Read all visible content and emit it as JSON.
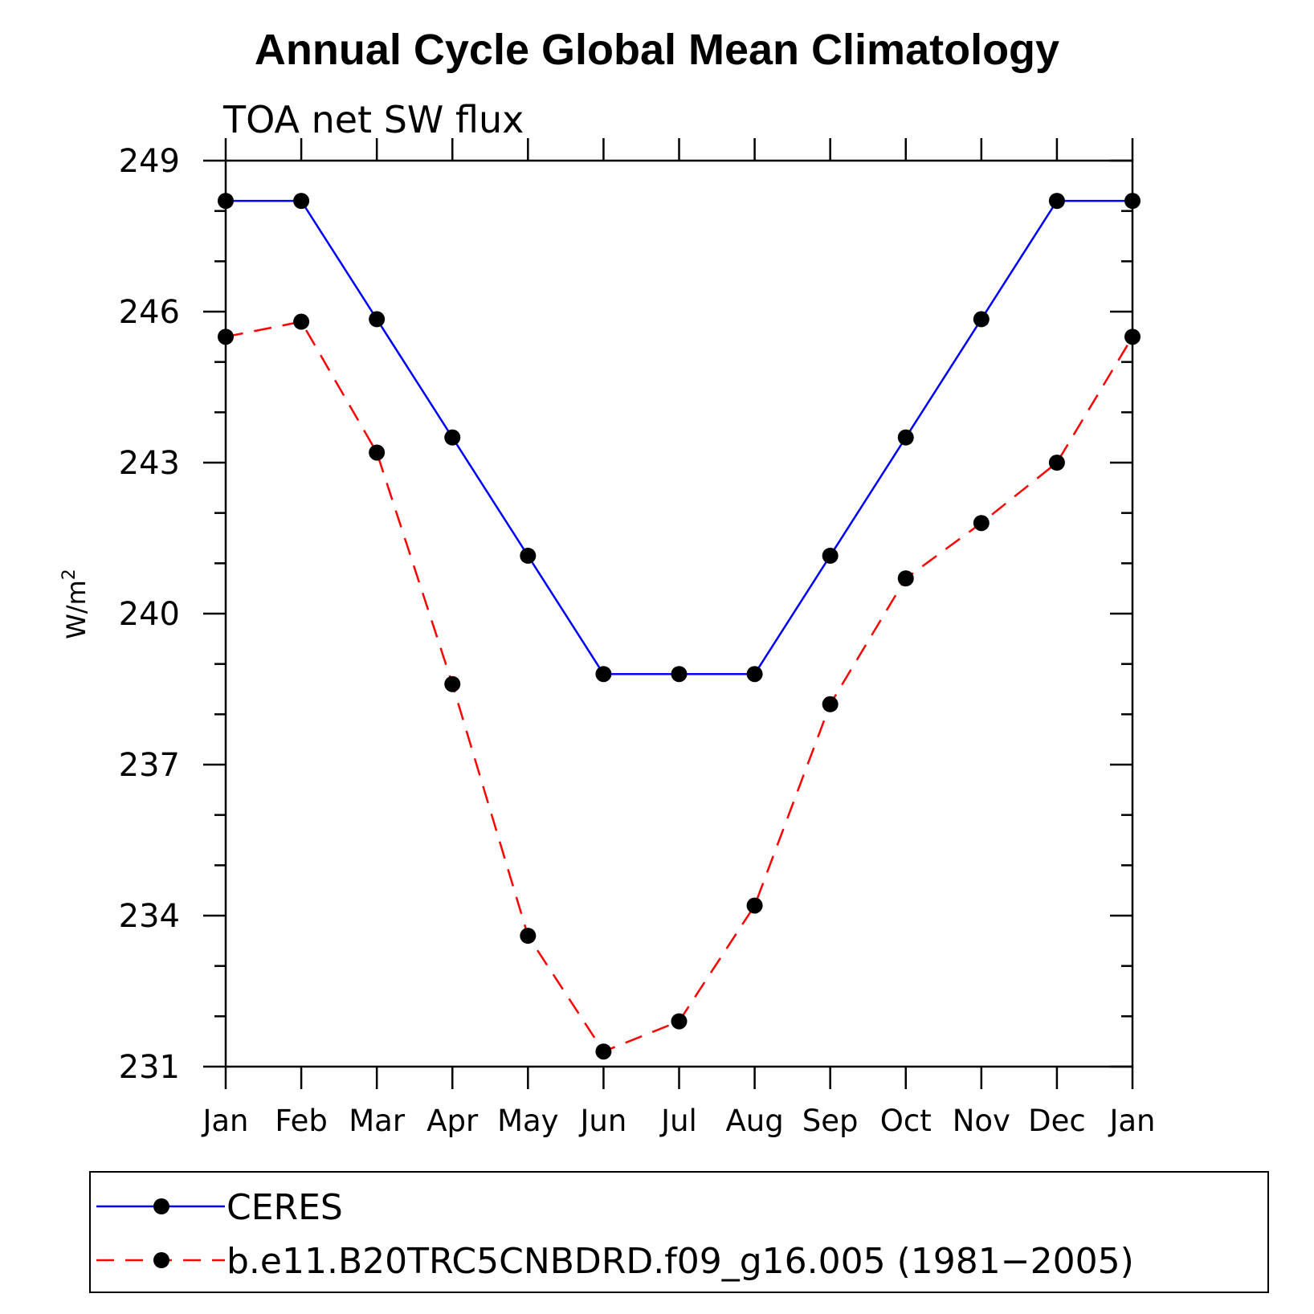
{
  "chart_data": {
    "type": "line",
    "title": "Annual Cycle Global Mean Climatology",
    "subtitle": "TOA net SW flux",
    "xlabel": "",
    "ylabel_base": "W/m",
    "ylabel_sup": "2",
    "categories": [
      "Jan",
      "Feb",
      "Mar",
      "Apr",
      "May",
      "Jun",
      "Jul",
      "Aug",
      "Sep",
      "Oct",
      "Nov",
      "Dec",
      "Jan"
    ],
    "ylim": [
      231,
      249
    ],
    "yticks": [
      231,
      234,
      237,
      240,
      243,
      246,
      249
    ],
    "grid": false,
    "legend_position": "bottom",
    "series": [
      {
        "name": "CERES",
        "color": "#0000ff",
        "dash": "solid",
        "values": [
          248.2,
          248.2,
          245.85,
          243.5,
          241.15,
          238.8,
          238.8,
          238.8,
          241.15,
          243.5,
          245.85,
          248.2,
          248.2
        ]
      },
      {
        "name": "b.e11.B20TRC5CNBDRD.f09_g16.005 (1981−2005)",
        "color": "#ff0000",
        "dash": "dashed",
        "values": [
          245.5,
          245.8,
          243.2,
          238.6,
          233.6,
          231.3,
          231.9,
          234.2,
          238.2,
          240.7,
          241.8,
          243.0,
          245.5
        ]
      }
    ],
    "marker_color": "#000000"
  }
}
